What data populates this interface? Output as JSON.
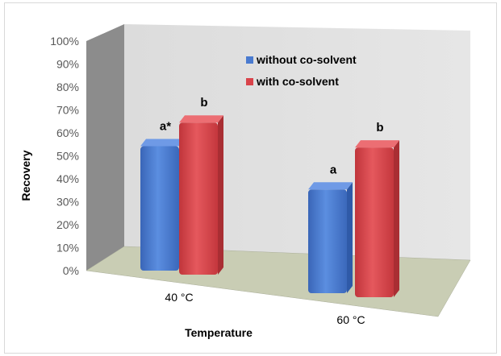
{
  "chart_data": {
    "type": "bar",
    "categories": [
      "40 °C",
      "60 °C"
    ],
    "series": [
      {
        "name": "without co-solvent",
        "values": [
          54,
          45
        ],
        "labels": [
          "a*",
          "a"
        ],
        "color": "#4a7bd0"
      },
      {
        "name": "with co-solvent",
        "values": [
          66,
          65
        ],
        "labels": [
          "b",
          "b"
        ],
        "color": "#d9434a"
      }
    ],
    "ylim": [
      0,
      100
    ],
    "yticks": [
      "0%",
      "10%",
      "20%",
      "30%",
      "40%",
      "50%",
      "60%",
      "70%",
      "80%",
      "90%",
      "100%"
    ],
    "xlabel": "Temperature",
    "ylabel": "Recovery",
    "legend_position": "top-center",
    "grid": false,
    "style": "3d-column"
  }
}
